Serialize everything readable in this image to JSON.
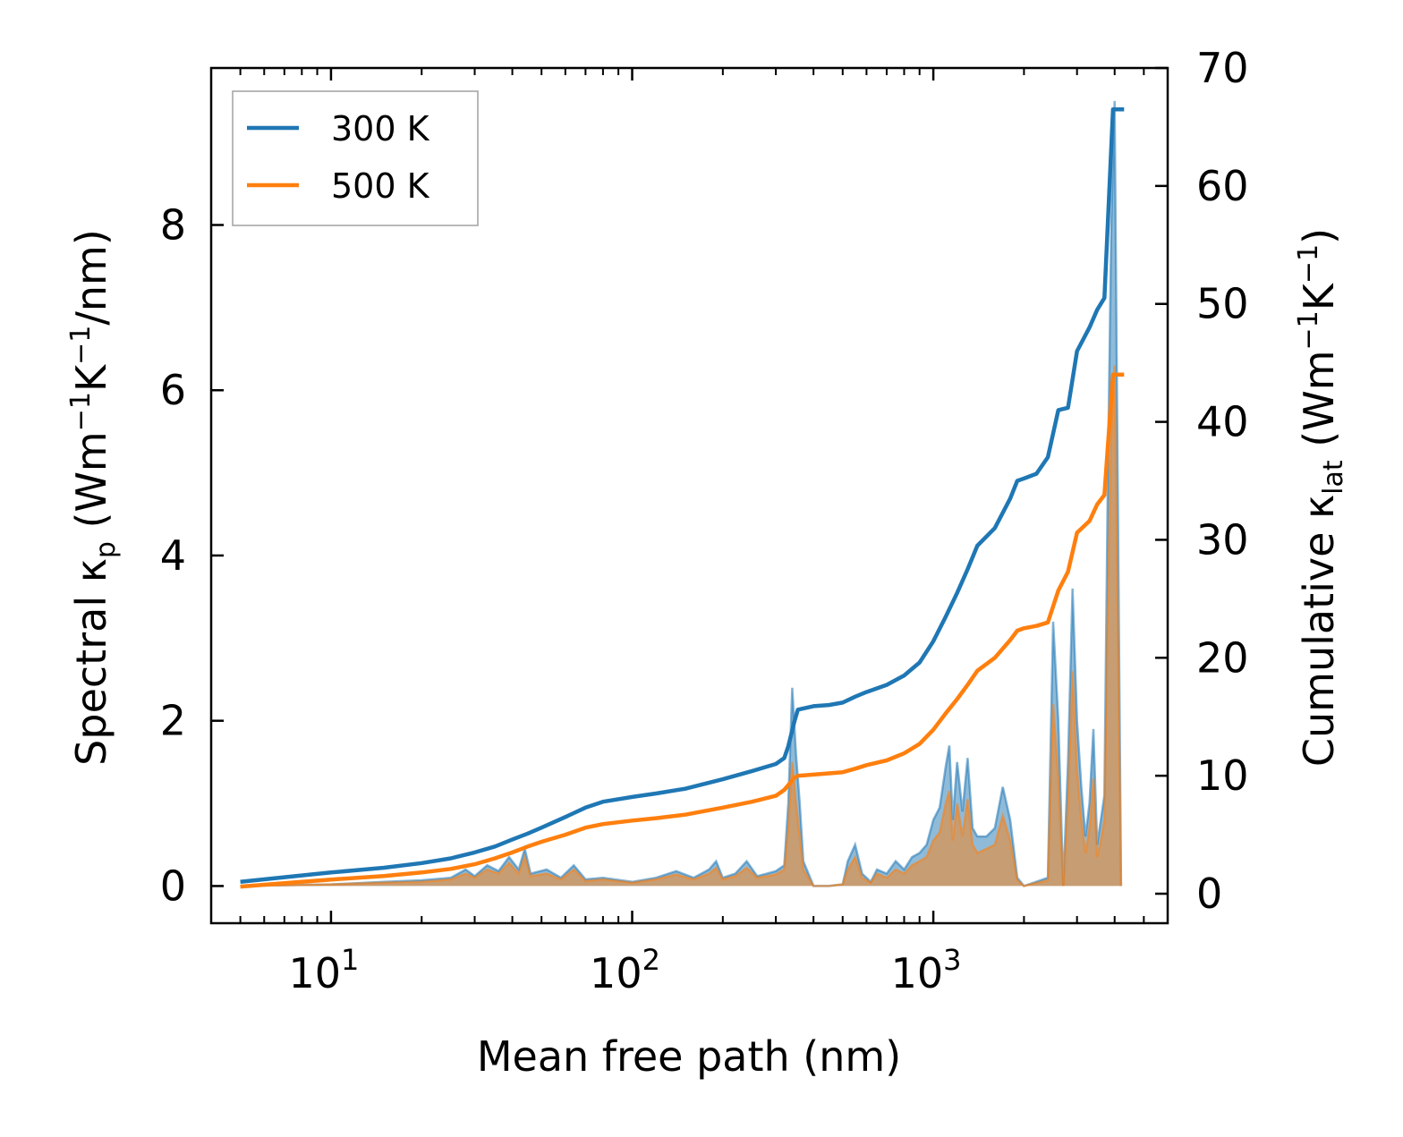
{
  "chart_data": {
    "type": "line",
    "xscale": "log",
    "xlabel": "Mean free path (nm)",
    "ylabel_left": {
      "main": "Spectral κ",
      "sub": "p",
      "unit_open": " (Wm",
      "sup1": "−1",
      "mid": "K",
      "sup2": "−1",
      "unit_close": "/nm)"
    },
    "ylabel_right": {
      "main": "Cumulative κ",
      "sub": "lat",
      "unit_open": " (Wm",
      "sup1": "−1",
      "mid": "K",
      "sup2": "−1",
      "unit_close": ")"
    },
    "xlim": [
      4,
      6000
    ],
    "ylim_left": [
      -0.45,
      9.9
    ],
    "ylim_right": [
      -2.5,
      70
    ],
    "x_ticks": [
      {
        "value": 10,
        "base": "10",
        "exp": "1"
      },
      {
        "value": 100,
        "base": "10",
        "exp": "2"
      },
      {
        "value": 1000,
        "base": "10",
        "exp": "3"
      }
    ],
    "y_ticks_left": [
      0,
      2,
      4,
      6,
      8
    ],
    "y_ticks_right": [
      0,
      10,
      20,
      30,
      40,
      50,
      60,
      70
    ],
    "legend": {
      "position": "top-left",
      "entries": [
        "300 K",
        "500 K"
      ]
    },
    "colors": {
      "300 K": "#1f77b4",
      "500 K": "#ff7f0e",
      "fill_300": "#1f77b4",
      "fill_500": "#ff7f0e"
    },
    "series": [
      {
        "name": "300 K",
        "axis": "right",
        "kind": "cumulative",
        "points": [
          [
            5,
            1
          ],
          [
            7,
            1.4
          ],
          [
            10,
            1.8
          ],
          [
            15,
            2.2
          ],
          [
            20,
            2.6
          ],
          [
            25,
            3.0
          ],
          [
            30,
            3.5
          ],
          [
            35,
            4.0
          ],
          [
            40,
            4.6
          ],
          [
            45,
            5.1
          ],
          [
            50,
            5.6
          ],
          [
            60,
            6.5
          ],
          [
            70,
            7.3
          ],
          [
            80,
            7.8
          ],
          [
            100,
            8.2
          ],
          [
            120,
            8.5
          ],
          [
            150,
            8.9
          ],
          [
            200,
            9.7
          ],
          [
            250,
            10.4
          ],
          [
            300,
            11.0
          ],
          [
            320,
            11.5
          ],
          [
            330,
            12.5
          ],
          [
            345,
            14.5
          ],
          [
            355,
            15.6
          ],
          [
            400,
            15.9
          ],
          [
            450,
            16.0
          ],
          [
            500,
            16.2
          ],
          [
            550,
            16.7
          ],
          [
            600,
            17.1
          ],
          [
            700,
            17.7
          ],
          [
            800,
            18.5
          ],
          [
            900,
            19.6
          ],
          [
            1000,
            21.4
          ],
          [
            1100,
            23.5
          ],
          [
            1200,
            25.5
          ],
          [
            1300,
            27.5
          ],
          [
            1400,
            29.5
          ],
          [
            1600,
            31.0
          ],
          [
            1800,
            33.5
          ],
          [
            1900,
            35.0
          ],
          [
            2000,
            35.2
          ],
          [
            2200,
            35.6
          ],
          [
            2400,
            37.0
          ],
          [
            2600,
            41.0
          ],
          [
            2800,
            41.2
          ],
          [
            3000,
            46.0
          ],
          [
            3300,
            48.0
          ],
          [
            3500,
            49.5
          ],
          [
            3700,
            50.5
          ],
          [
            3800,
            57.0
          ],
          [
            3950,
            66.5
          ],
          [
            4300,
            66.5
          ]
        ]
      },
      {
        "name": "500 K",
        "axis": "right",
        "kind": "cumulative",
        "points": [
          [
            5,
            0.6
          ],
          [
            7,
            0.9
          ],
          [
            10,
            1.2
          ],
          [
            15,
            1.5
          ],
          [
            20,
            1.8
          ],
          [
            25,
            2.1
          ],
          [
            30,
            2.5
          ],
          [
            35,
            3.0
          ],
          [
            40,
            3.5
          ],
          [
            45,
            4.0
          ],
          [
            50,
            4.4
          ],
          [
            60,
            5.0
          ],
          [
            70,
            5.6
          ],
          [
            80,
            5.9
          ],
          [
            100,
            6.2
          ],
          [
            120,
            6.4
          ],
          [
            150,
            6.7
          ],
          [
            200,
            7.3
          ],
          [
            250,
            7.8
          ],
          [
            300,
            8.3
          ],
          [
            320,
            8.8
          ],
          [
            345,
            9.8
          ],
          [
            355,
            10.0
          ],
          [
            400,
            10.1
          ],
          [
            450,
            10.2
          ],
          [
            500,
            10.3
          ],
          [
            550,
            10.6
          ],
          [
            600,
            10.9
          ],
          [
            700,
            11.3
          ],
          [
            800,
            11.9
          ],
          [
            900,
            12.7
          ],
          [
            1000,
            13.9
          ],
          [
            1100,
            15.3
          ],
          [
            1200,
            16.5
          ],
          [
            1300,
            17.7
          ],
          [
            1400,
            18.9
          ],
          [
            1600,
            20.0
          ],
          [
            1800,
            21.5
          ],
          [
            1900,
            22.3
          ],
          [
            2000,
            22.5
          ],
          [
            2200,
            22.7
          ],
          [
            2400,
            23.0
          ],
          [
            2600,
            25.7
          ],
          [
            2800,
            27.3
          ],
          [
            3000,
            30.6
          ],
          [
            3300,
            31.6
          ],
          [
            3500,
            33.0
          ],
          [
            3700,
            33.8
          ],
          [
            3800,
            38.0
          ],
          [
            3950,
            44.0
          ],
          [
            4300,
            44.0
          ]
        ]
      },
      {
        "name": "300 K spectral",
        "axis": "left",
        "kind": "spectral",
        "points": [
          [
            5,
            0
          ],
          [
            10,
            0.02
          ],
          [
            15,
            0.05
          ],
          [
            20,
            0.07
          ],
          [
            25,
            0.1
          ],
          [
            28,
            0.2
          ],
          [
            30,
            0.12
          ],
          [
            33,
            0.25
          ],
          [
            36,
            0.18
          ],
          [
            39,
            0.35
          ],
          [
            42,
            0.2
          ],
          [
            44,
            0.45
          ],
          [
            46,
            0.15
          ],
          [
            52,
            0.2
          ],
          [
            58,
            0.1
          ],
          [
            64,
            0.25
          ],
          [
            70,
            0.08
          ],
          [
            80,
            0.1
          ],
          [
            100,
            0.05
          ],
          [
            120,
            0.1
          ],
          [
            140,
            0.18
          ],
          [
            160,
            0.1
          ],
          [
            180,
            0.2
          ],
          [
            190,
            0.3
          ],
          [
            200,
            0.1
          ],
          [
            220,
            0.15
          ],
          [
            240,
            0.3
          ],
          [
            260,
            0.12
          ],
          [
            280,
            0.15
          ],
          [
            300,
            0.18
          ],
          [
            320,
            0.25
          ],
          [
            330,
            1.0
          ],
          [
            340,
            2.4
          ],
          [
            350,
            1.6
          ],
          [
            360,
            1.0
          ],
          [
            370,
            0.3
          ],
          [
            400,
            0
          ],
          [
            450,
            0
          ],
          [
            500,
            0.02
          ],
          [
            520,
            0.3
          ],
          [
            550,
            0.5
          ],
          [
            580,
            0.15
          ],
          [
            620,
            0.05
          ],
          [
            650,
            0.2
          ],
          [
            700,
            0.15
          ],
          [
            750,
            0.3
          ],
          [
            800,
            0.2
          ],
          [
            850,
            0.35
          ],
          [
            900,
            0.4
          ],
          [
            950,
            0.5
          ],
          [
            1000,
            0.8
          ],
          [
            1050,
            0.95
          ],
          [
            1100,
            1.45
          ],
          [
            1130,
            1.7
          ],
          [
            1160,
            0.8
          ],
          [
            1200,
            1.5
          ],
          [
            1250,
            0.9
          ],
          [
            1300,
            1.55
          ],
          [
            1350,
            0.7
          ],
          [
            1400,
            0.6
          ],
          [
            1500,
            0.6
          ],
          [
            1600,
            0.7
          ],
          [
            1700,
            1.2
          ],
          [
            1750,
            1.0
          ],
          [
            1800,
            0.8
          ],
          [
            1900,
            0.1
          ],
          [
            2000,
            0
          ],
          [
            2400,
            0.1
          ],
          [
            2500,
            3.2
          ],
          [
            2600,
            2.0
          ],
          [
            2700,
            0
          ],
          [
            2800,
            1.5
          ],
          [
            2900,
            3.6
          ],
          [
            3000,
            2.0
          ],
          [
            3100,
            1.2
          ],
          [
            3200,
            0.6
          ],
          [
            3300,
            1.0
          ],
          [
            3400,
            1.9
          ],
          [
            3500,
            0.5
          ],
          [
            3600,
            0.8
          ],
          [
            3700,
            1.1
          ],
          [
            3800,
            5.0
          ],
          [
            3900,
            8.0
          ],
          [
            4000,
            9.5
          ],
          [
            4200,
            0
          ]
        ]
      },
      {
        "name": "500 K spectral",
        "axis": "left",
        "kind": "spectral",
        "points": [
          [
            5,
            0
          ],
          [
            10,
            0.02
          ],
          [
            15,
            0.04
          ],
          [
            20,
            0.05
          ],
          [
            25,
            0.08
          ],
          [
            28,
            0.15
          ],
          [
            30,
            0.1
          ],
          [
            33,
            0.2
          ],
          [
            36,
            0.15
          ],
          [
            39,
            0.28
          ],
          [
            42,
            0.15
          ],
          [
            44,
            0.35
          ],
          [
            46,
            0.12
          ],
          [
            52,
            0.15
          ],
          [
            58,
            0.08
          ],
          [
            64,
            0.2
          ],
          [
            70,
            0.06
          ],
          [
            80,
            0.08
          ],
          [
            100,
            0.04
          ],
          [
            120,
            0.08
          ],
          [
            140,
            0.14
          ],
          [
            160,
            0.08
          ],
          [
            180,
            0.15
          ],
          [
            190,
            0.22
          ],
          [
            200,
            0.08
          ],
          [
            220,
            0.12
          ],
          [
            240,
            0.22
          ],
          [
            260,
            0.1
          ],
          [
            280,
            0.12
          ],
          [
            300,
            0.14
          ],
          [
            320,
            0.2
          ],
          [
            330,
            0.7
          ],
          [
            340,
            1.5
          ],
          [
            350,
            1.0
          ],
          [
            360,
            0.6
          ],
          [
            370,
            0.2
          ],
          [
            400,
            0
          ],
          [
            450,
            0
          ],
          [
            500,
            0.02
          ],
          [
            520,
            0.2
          ],
          [
            550,
            0.35
          ],
          [
            580,
            0.1
          ],
          [
            620,
            0.04
          ],
          [
            650,
            0.15
          ],
          [
            700,
            0.1
          ],
          [
            750,
            0.2
          ],
          [
            800,
            0.15
          ],
          [
            850,
            0.25
          ],
          [
            900,
            0.3
          ],
          [
            950,
            0.35
          ],
          [
            1000,
            0.55
          ],
          [
            1050,
            0.65
          ],
          [
            1100,
            1.0
          ],
          [
            1130,
            1.15
          ],
          [
            1160,
            0.55
          ],
          [
            1200,
            1.0
          ],
          [
            1250,
            0.6
          ],
          [
            1300,
            1.05
          ],
          [
            1350,
            0.5
          ],
          [
            1400,
            0.4
          ],
          [
            1500,
            0.45
          ],
          [
            1600,
            0.5
          ],
          [
            1700,
            0.85
          ],
          [
            1750,
            0.7
          ],
          [
            1800,
            0.55
          ],
          [
            1900,
            0.07
          ],
          [
            2000,
            0
          ],
          [
            2400,
            0.07
          ],
          [
            2500,
            2.2
          ],
          [
            2600,
            1.3
          ],
          [
            2700,
            0
          ],
          [
            2800,
            1.0
          ],
          [
            2900,
            2.6
          ],
          [
            3000,
            1.4
          ],
          [
            3100,
            0.8
          ],
          [
            3200,
            0.4
          ],
          [
            3300,
            0.7
          ],
          [
            3400,
            1.3
          ],
          [
            3500,
            0.35
          ],
          [
            3600,
            0.55
          ],
          [
            3700,
            0.8
          ],
          [
            3800,
            3.5
          ],
          [
            3900,
            5.5
          ],
          [
            4000,
            6.3
          ],
          [
            4200,
            0
          ]
        ]
      }
    ]
  }
}
